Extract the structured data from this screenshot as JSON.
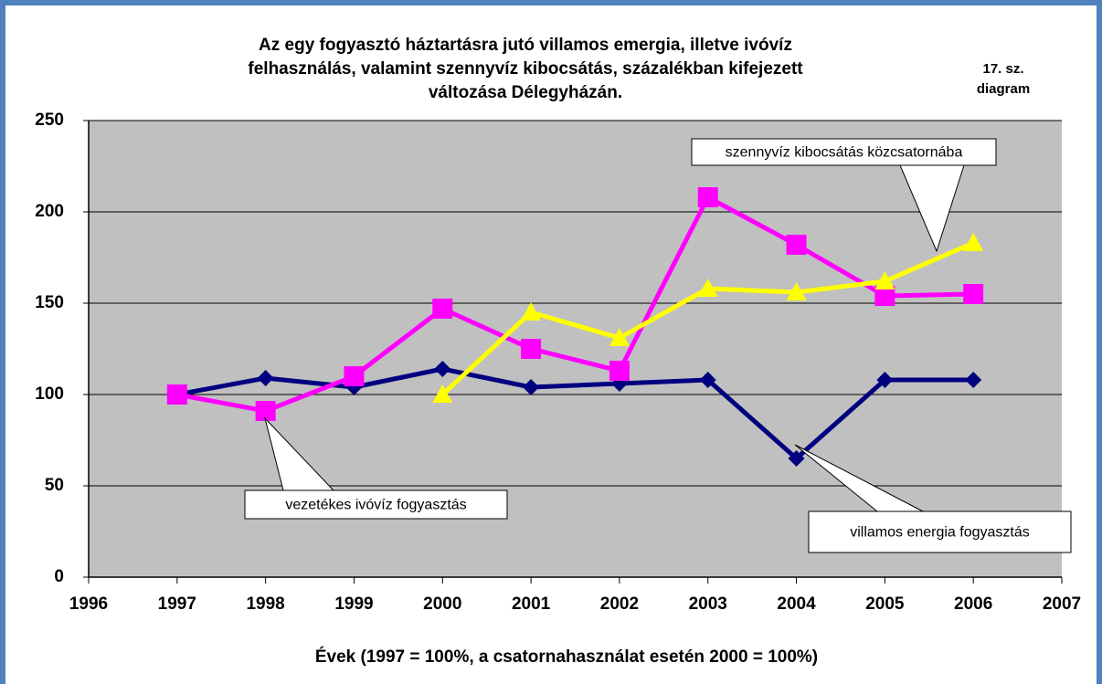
{
  "chart_data": {
    "type": "line",
    "title": [
      "Az egy fogyasztó háztartásra jutó villamos emergia, illetve ivóvíz",
      "felhasználás, valamint szennyvíz kibocsátás, százalékban kifejezett",
      "változása Délegyházán."
    ],
    "annotation": [
      "17. sz.",
      "diagram"
    ],
    "x_label": "Évek (1997 = 100%, a csatornahasználat esetén 2000 = 100%)",
    "x": [
      1997,
      1998,
      1999,
      2000,
      2001,
      2002,
      2003,
      2004,
      2005,
      2006
    ],
    "series": [
      {
        "name": "villamos energia fogyasztás",
        "color": "#000080",
        "marker": "diamond",
        "values": [
          100,
          109,
          104,
          114,
          104,
          106,
          108,
          65,
          108,
          108
        ]
      },
      {
        "name": "vezetékes ivóvíz fogyasztás",
        "color": "#ff00ff",
        "marker": "square",
        "values": [
          100,
          91,
          110,
          147,
          125,
          113,
          208,
          182,
          154,
          155
        ]
      },
      {
        "name": "szennyvíz kibocsátás közcsatornába",
        "color": "#ffff00",
        "marker": "triangle",
        "values": [
          null,
          null,
          null,
          100,
          145,
          131,
          158,
          156,
          162,
          183
        ]
      }
    ],
    "xlim": [
      1996,
      2007
    ],
    "xticks": [
      1996,
      1997,
      1998,
      1999,
      2000,
      2001,
      2002,
      2003,
      2004,
      2005,
      2006,
      2007
    ],
    "ylim": [
      0,
      250
    ],
    "yticks": [
      0,
      50,
      100,
      150,
      200,
      250
    ],
    "grid": true
  }
}
